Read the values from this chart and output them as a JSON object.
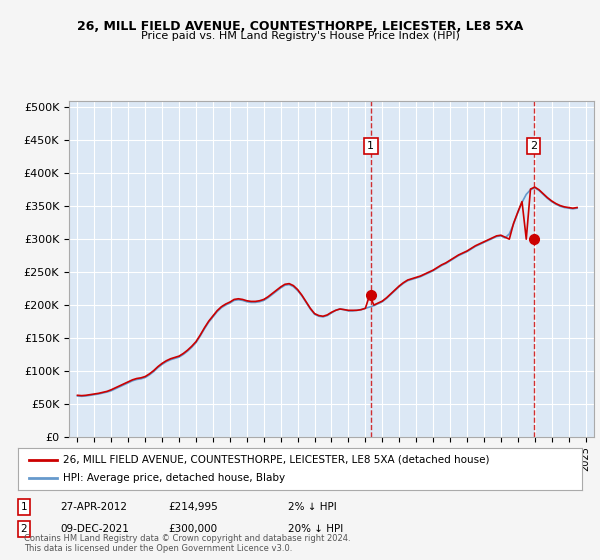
{
  "title1": "26, MILL FIELD AVENUE, COUNTESTHORPE, LEICESTER, LE8 5XA",
  "title2": "Price paid vs. HM Land Registry's House Price Index (HPI)",
  "ylabel_ticks": [
    "£0",
    "£50K",
    "£100K",
    "£150K",
    "£200K",
    "£250K",
    "£300K",
    "£350K",
    "£400K",
    "£450K",
    "£500K"
  ],
  "ytick_values": [
    0,
    50000,
    100000,
    150000,
    200000,
    250000,
    300000,
    350000,
    400000,
    450000,
    500000
  ],
  "xlim": [
    1994.5,
    2025.5
  ],
  "ylim": [
    0,
    510000
  ],
  "bg_color": "#e8f0f8",
  "plot_bg": "#dce8f5",
  "grid_color": "#ffffff",
  "red_line_color": "#cc0000",
  "blue_line_color": "#6699cc",
  "marker1_date": 2012.32,
  "marker2_date": 2021.93,
  "marker1_price": 214995,
  "marker2_price": 300000,
  "legend_label1": "26, MILL FIELD AVENUE, COUNTESTHORPE, LEICESTER, LE8 5XA (detached house)",
  "legend_label2": "HPI: Average price, detached house, Blaby",
  "note1_label": "1",
  "note1_date": "27-APR-2012",
  "note1_price": "£214,995",
  "note1_pct": "2% ↓ HPI",
  "note2_label": "2",
  "note2_date": "09-DEC-2021",
  "note2_price": "£300,000",
  "note2_pct": "20% ↓ HPI",
  "footer": "Contains HM Land Registry data © Crown copyright and database right 2024.\nThis data is licensed under the Open Government Licence v3.0.",
  "hpi_data_x": [
    1995.0,
    1995.25,
    1995.5,
    1995.75,
    1996.0,
    1996.25,
    1996.5,
    1996.75,
    1997.0,
    1997.25,
    1997.5,
    1997.75,
    1998.0,
    1998.25,
    1998.5,
    1998.75,
    1999.0,
    1999.25,
    1999.5,
    1999.75,
    2000.0,
    2000.25,
    2000.5,
    2000.75,
    2001.0,
    2001.25,
    2001.5,
    2001.75,
    2002.0,
    2002.25,
    2002.5,
    2002.75,
    2003.0,
    2003.25,
    2003.5,
    2003.75,
    2004.0,
    2004.25,
    2004.5,
    2004.75,
    2005.0,
    2005.25,
    2005.5,
    2005.75,
    2006.0,
    2006.25,
    2006.5,
    2006.75,
    2007.0,
    2007.25,
    2007.5,
    2007.75,
    2008.0,
    2008.25,
    2008.5,
    2008.75,
    2009.0,
    2009.25,
    2009.5,
    2009.75,
    2010.0,
    2010.25,
    2010.5,
    2010.75,
    2011.0,
    2011.25,
    2011.5,
    2011.75,
    2012.0,
    2012.25,
    2012.5,
    2012.75,
    2013.0,
    2013.25,
    2013.5,
    2013.75,
    2014.0,
    2014.25,
    2014.5,
    2014.75,
    2015.0,
    2015.25,
    2015.5,
    2015.75,
    2016.0,
    2016.25,
    2016.5,
    2016.75,
    2017.0,
    2017.25,
    2017.5,
    2017.75,
    2018.0,
    2018.25,
    2018.5,
    2018.75,
    2019.0,
    2019.25,
    2019.5,
    2019.75,
    2020.0,
    2020.25,
    2020.5,
    2020.75,
    2021.0,
    2021.25,
    2021.5,
    2021.75,
    2022.0,
    2022.25,
    2022.5,
    2022.75,
    2023.0,
    2023.25,
    2023.5,
    2023.75,
    2024.0,
    2024.25,
    2024.5
  ],
  "hpi_data_y": [
    62000,
    61500,
    62000,
    63000,
    64000,
    65000,
    66500,
    68000,
    70000,
    73000,
    76000,
    79000,
    82000,
    85000,
    87000,
    88000,
    90000,
    94000,
    99000,
    105000,
    110000,
    114000,
    117000,
    119000,
    121000,
    125000,
    130000,
    136000,
    143000,
    153000,
    164000,
    174000,
    182000,
    190000,
    196000,
    200000,
    203000,
    207000,
    208000,
    207000,
    205000,
    204000,
    204000,
    205000,
    207000,
    211000,
    216000,
    221000,
    226000,
    230000,
    231000,
    228000,
    222000,
    214000,
    204000,
    194000,
    186000,
    183000,
    182000,
    184000,
    188000,
    192000,
    194000,
    193000,
    191000,
    191000,
    192000,
    193000,
    195000,
    197000,
    199000,
    202000,
    205000,
    210000,
    216000,
    222000,
    228000,
    233000,
    237000,
    239000,
    241000,
    243000,
    246000,
    249000,
    252000,
    256000,
    260000,
    263000,
    267000,
    271000,
    275000,
    278000,
    281000,
    285000,
    289000,
    292000,
    295000,
    298000,
    301000,
    304000,
    305000,
    302000,
    308000,
    323000,
    340000,
    356000,
    368000,
    375000,
    378000,
    374000,
    368000,
    362000,
    357000,
    353000,
    350000,
    348000,
    347000,
    346000,
    347000
  ],
  "red_data_x": [
    1995.0,
    1995.25,
    1995.5,
    1995.75,
    1996.0,
    1996.25,
    1996.5,
    1996.75,
    1997.0,
    1997.25,
    1997.5,
    1997.75,
    1998.0,
    1998.25,
    1998.5,
    1998.75,
    1999.0,
    1999.25,
    1999.5,
    1999.75,
    2000.0,
    2000.25,
    2000.5,
    2000.75,
    2001.0,
    2001.25,
    2001.5,
    2001.75,
    2002.0,
    2002.25,
    2002.5,
    2002.75,
    2003.0,
    2003.25,
    2003.5,
    2003.75,
    2004.0,
    2004.25,
    2004.5,
    2004.75,
    2005.0,
    2005.25,
    2005.5,
    2005.75,
    2006.0,
    2006.25,
    2006.5,
    2006.75,
    2007.0,
    2007.25,
    2007.5,
    2007.75,
    2008.0,
    2008.25,
    2008.5,
    2008.75,
    2009.0,
    2009.25,
    2009.5,
    2009.75,
    2010.0,
    2010.25,
    2010.5,
    2010.75,
    2011.0,
    2011.25,
    2011.5,
    2011.75,
    2012.0,
    2012.25,
    2012.5,
    2012.75,
    2013.0,
    2013.25,
    2013.5,
    2013.75,
    2014.0,
    2014.25,
    2014.5,
    2014.75,
    2015.0,
    2015.25,
    2015.5,
    2015.75,
    2016.0,
    2016.25,
    2016.5,
    2016.75,
    2017.0,
    2017.25,
    2017.5,
    2017.75,
    2018.0,
    2018.25,
    2018.5,
    2018.75,
    2019.0,
    2019.25,
    2019.5,
    2019.75,
    2020.0,
    2020.25,
    2020.5,
    2020.75,
    2021.0,
    2021.25,
    2021.5,
    2021.75,
    2022.0,
    2022.25,
    2022.5,
    2022.75,
    2023.0,
    2023.25,
    2023.5,
    2023.75,
    2024.0,
    2024.25,
    2024.5
  ],
  "red_data_y": [
    63000,
    62500,
    63000,
    64000,
    65000,
    66000,
    67500,
    69000,
    71500,
    74500,
    77500,
    80500,
    83500,
    86500,
    88500,
    89500,
    91500,
    95500,
    100500,
    106500,
    111500,
    115500,
    118500,
    120500,
    122500,
    126500,
    131500,
    137500,
    144500,
    154500,
    165500,
    175500,
    183500,
    191500,
    197500,
    201500,
    204500,
    208500,
    209500,
    208500,
    206500,
    205500,
    205500,
    206500,
    208500,
    212500,
    217500,
    222500,
    227500,
    231500,
    232500,
    229500,
    223500,
    214995,
    205000,
    195000,
    187000,
    184000,
    183000,
    185000,
    189000,
    192000,
    194000,
    193000,
    192000,
    192000,
    192000,
    193000,
    195000,
    214995,
    200000,
    203000,
    206000,
    211000,
    217000,
    223000,
    229000,
    234000,
    238000,
    240000,
    242000,
    244000,
    247000,
    250000,
    253000,
    257000,
    261000,
    264000,
    268000,
    272000,
    276000,
    279000,
    282000,
    286000,
    290000,
    293000,
    296000,
    299000,
    302000,
    305000,
    306000,
    303000,
    300000,
    324000,
    341000,
    357000,
    300000,
    376000,
    379000,
    375000,
    369000,
    363000,
    358000,
    354000,
    351000,
    349000,
    348000,
    347000,
    348000
  ]
}
